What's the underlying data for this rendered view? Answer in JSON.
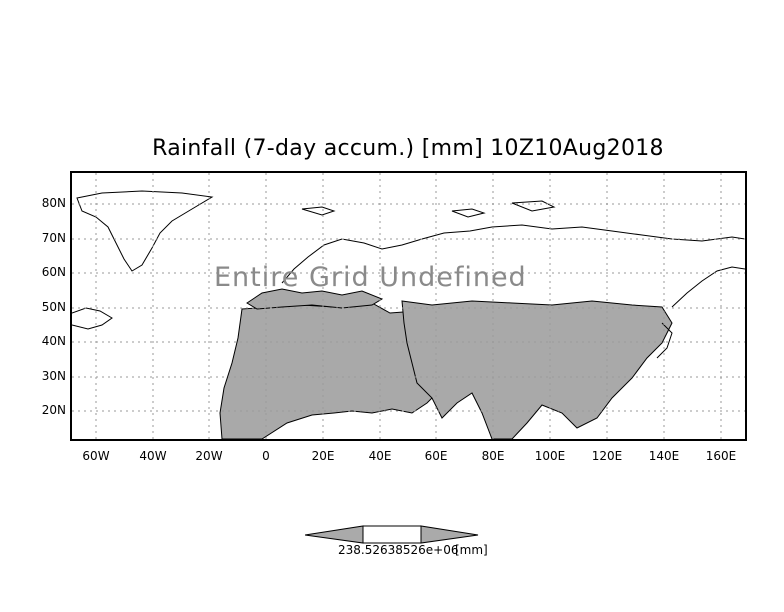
{
  "title": "Rainfall (7-day accum.) [mm] 10Z10Aug2018",
  "y_axis_labels": [
    "80N",
    "70N",
    "60N",
    "50N",
    "40N",
    "30N",
    "20N"
  ],
  "x_axis_labels": [
    "60W",
    "40W",
    "20W",
    "0",
    "20E",
    "40E",
    "60E",
    "80E",
    "100E",
    "120E",
    "140E",
    "160E"
  ],
  "overlay_text": "Entire Grid Undefined",
  "colorbar": {
    "value_label": "238.52638526e+06",
    "unit_label": "[mm]",
    "fill_color": "#aaaaaa"
  },
  "colors": {
    "land_fill": "#a9a9a9",
    "coast": "#000000",
    "grid": "#9a9a9a"
  }
}
